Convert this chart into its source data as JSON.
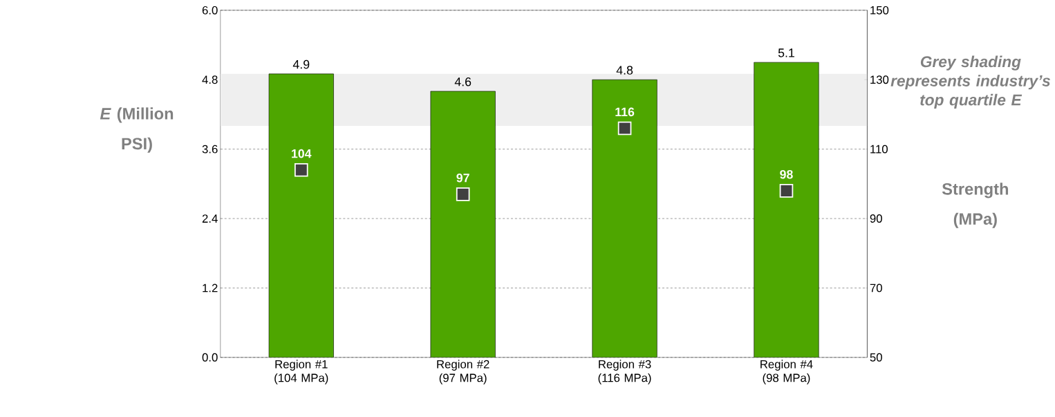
{
  "chart_data": {
    "type": "bar",
    "categories": [
      "Region #1 (104 MPa)",
      "Region #2 (97 MPa)",
      "Region #3 (116 MPa)",
      "Region #4 (98 MPa)"
    ],
    "series": [
      {
        "color": "#4ea600",
        "values": [
          4.9,
          4.6,
          4.8,
          5.1
        ]
      },
      {
        "type": "scatter",
        "axis": "y2",
        "color": "#404040",
        "marker": "square",
        "values": [
          104,
          97,
          116,
          98
        ]
      }
    ],
    "ylabel": "*E* (Million PSI)",
    "y2label": "Strength (MPa)",
    "ylim": [
      0,
      6
    ],
    "yticks": [
      {
        "value": 0,
        "label": "0.0"
      },
      {
        "value": 1.2,
        "label": "1.2"
      },
      {
        "value": 2.4,
        "label": "2.4"
      },
      {
        "value": 3.6,
        "label": "3.6"
      },
      {
        "value": 4.8,
        "label": "4.8"
      },
      {
        "value": 6,
        "label": "6.0"
      }
    ],
    "y2lim": [
      50,
      150
    ],
    "y2ticks": [
      50,
      70,
      90,
      110,
      130,
      150
    ],
    "bands": [
      {
        "axis": "y",
        "from": 4.0,
        "to": 4.9,
        "color": "#efefef"
      }
    ],
    "annotations": [
      "Grey shading represents industry’s top quartile E"
    ],
    "grid": "y",
    "data_labels": true
  }
}
